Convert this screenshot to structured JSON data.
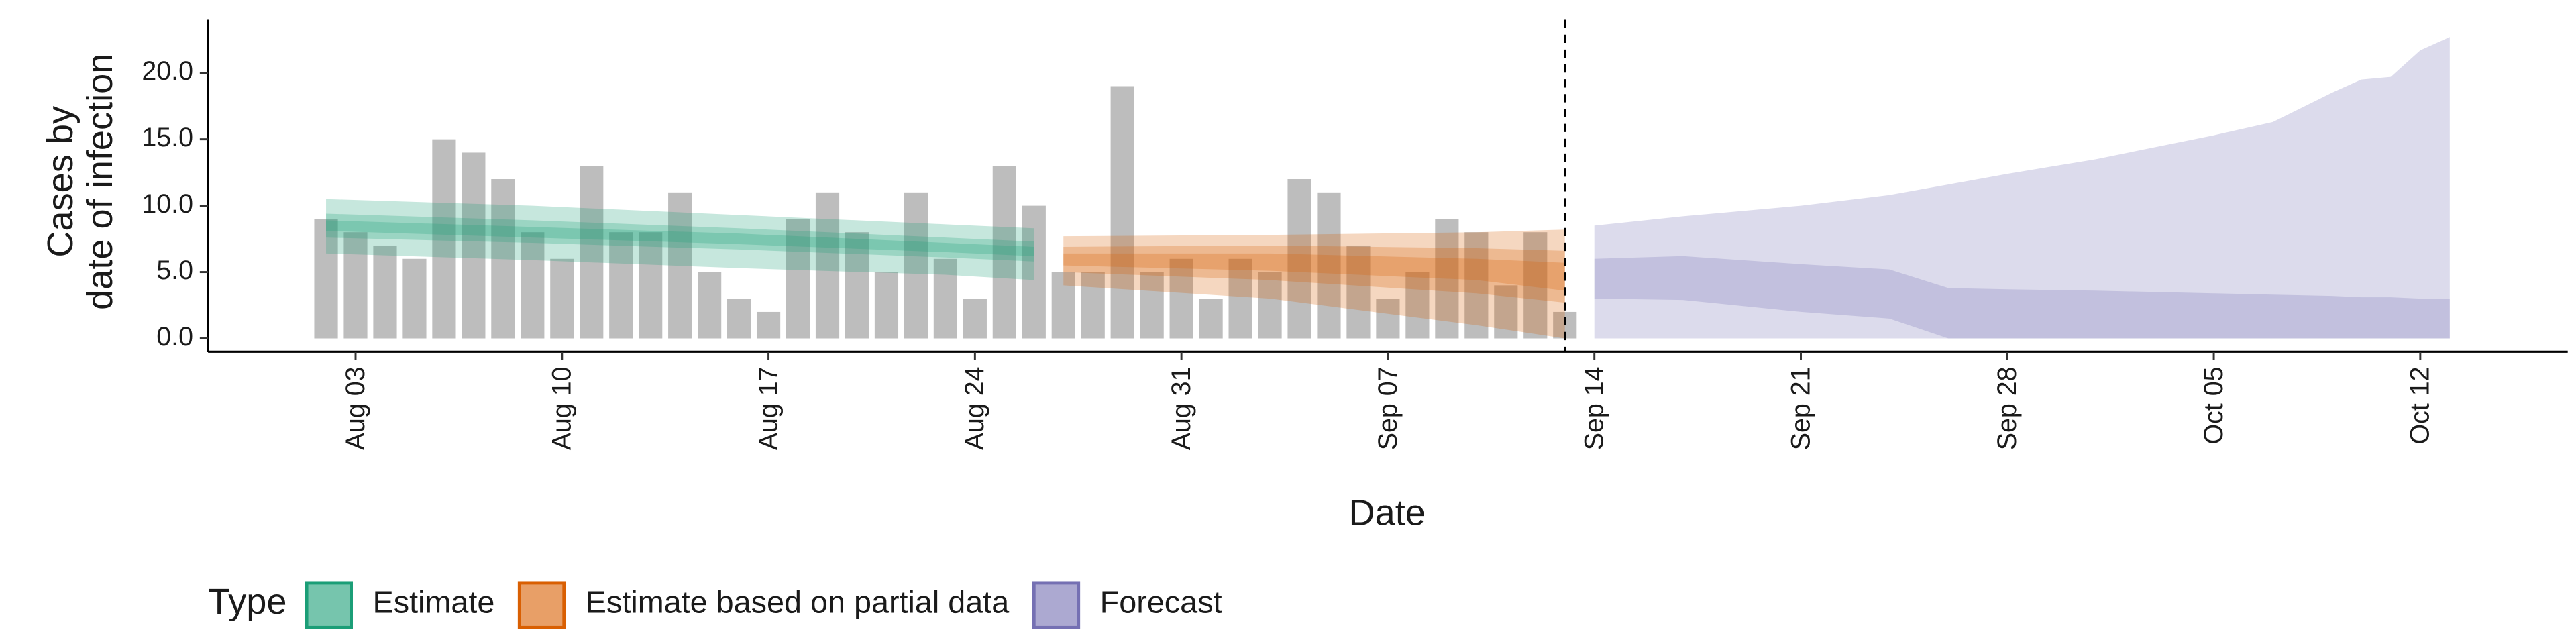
{
  "chart_data": {
    "type": "area",
    "xlabel": "Date",
    "ylabel": [
      "Cases by",
      "date of infection"
    ],
    "legend_title": "Type",
    "legend": "bottom-left",
    "grid": false,
    "xlim": [
      "Jul 29",
      "Oct 17"
    ],
    "xticks": [
      "Aug 03",
      "Aug 10",
      "Aug 17",
      "Aug 24",
      "Aug 31",
      "Sep 07",
      "Sep 14",
      "Sep 21",
      "Sep 28",
      "Oct 05",
      "Oct 12"
    ],
    "ylim": [
      -1,
      24
    ],
    "yticks": [
      {
        "value": 0,
        "label": "0.0"
      },
      {
        "value": 5,
        "label": "5.0"
      },
      {
        "value": 10,
        "label": "10.0"
      },
      {
        "value": 15,
        "label": "15.0"
      },
      {
        "value": 20,
        "label": "20.0"
      }
    ],
    "vline": "Sep 13",
    "series": [
      {
        "type": "bar",
        "color": "#bdbdbd",
        "x": [
          "Aug 02",
          "Aug 03",
          "Aug 04",
          "Aug 05",
          "Aug 06",
          "Aug 07",
          "Aug 08",
          "Aug 09",
          "Aug 10",
          "Aug 11",
          "Aug 12",
          "Aug 13",
          "Aug 14",
          "Aug 15",
          "Aug 16",
          "Aug 17",
          "Aug 18",
          "Aug 19",
          "Aug 20",
          "Aug 21",
          "Aug 22",
          "Aug 23",
          "Aug 24",
          "Aug 25",
          "Aug 26",
          "Aug 27",
          "Aug 28",
          "Aug 29",
          "Aug 30",
          "Aug 31",
          "Sep 01",
          "Sep 02",
          "Sep 03",
          "Sep 04",
          "Sep 05",
          "Sep 06",
          "Sep 07",
          "Sep 08",
          "Sep 09",
          "Sep 10",
          "Sep 11",
          "Sep 12",
          "Sep 13"
        ],
        "values": [
          9,
          8,
          7,
          6,
          15,
          14,
          12,
          8,
          6,
          13,
          8,
          8,
          11,
          5,
          3,
          2,
          9,
          11,
          8,
          5,
          11,
          6,
          3,
          13,
          10,
          5,
          5,
          19,
          5,
          6,
          3,
          6,
          5,
          12,
          11,
          7,
          3,
          5,
          9,
          8,
          4,
          8,
          2
        ]
      },
      {
        "type": "ribbon",
        "name": "Estimate",
        "color": "#1b9e77",
        "bands": [
          {
            "x": [
              "Aug 02",
              "Aug 09",
              "Aug 16",
              "Aug 23",
              "Aug 26"
            ],
            "lower": [
              6.4,
              5.9,
              5.3,
              4.8,
              4.4
            ],
            "upper": [
              10.5,
              10.0,
              9.3,
              8.6,
              8.3
            ]
          },
          {
            "x": [
              "Aug 02",
              "Aug 09",
              "Aug 16",
              "Aug 23",
              "Aug 26"
            ],
            "lower": [
              7.6,
              7.2,
              6.7,
              6.1,
              5.8
            ],
            "upper": [
              9.4,
              8.9,
              8.3,
              7.6,
              7.3
            ]
          },
          {
            "x": [
              "Aug 02",
              "Aug 09",
              "Aug 16",
              "Aug 23",
              "Aug 26"
            ],
            "lower": [
              8.1,
              7.6,
              7.1,
              6.5,
              6.2
            ],
            "upper": [
              8.9,
              8.4,
              7.9,
              7.2,
              6.9
            ]
          }
        ]
      },
      {
        "type": "ribbon",
        "name": "Estimate based on partial data",
        "color": "#d95f02",
        "bands": [
          {
            "x": [
              "Aug 27",
              "Sep 03",
              "Sep 10",
              "Sep 13"
            ],
            "lower": [
              4.0,
              3.0,
              1.0,
              0.0
            ],
            "upper": [
              7.7,
              7.8,
              8.0,
              8.2
            ]
          },
          {
            "x": [
              "Aug 27",
              "Sep 03",
              "Sep 10",
              "Sep 13"
            ],
            "lower": [
              5.0,
              4.4,
              3.4,
              2.7
            ],
            "upper": [
              6.9,
              7.0,
              6.8,
              6.6
            ]
          },
          {
            "x": [
              "Aug 27",
              "Sep 03",
              "Sep 10",
              "Sep 13"
            ],
            "lower": [
              5.5,
              5.1,
              4.4,
              3.6
            ],
            "upper": [
              6.4,
              6.4,
              6.0,
              5.7
            ]
          }
        ]
      },
      {
        "type": "ribbon",
        "name": "Forecast",
        "color": "#7570b3",
        "bands": [
          {
            "x": [
              "Sep 14",
              "Sep 17",
              "Sep 21",
              "Sep 24",
              "Sep 26",
              "Sep 28",
              "Oct 01",
              "Oct 05",
              "Oct 07",
              "Oct 09",
              "Oct 10",
              "Oct 11",
              "Oct 12",
              "Oct 13"
            ],
            "lower": [
              0,
              0,
              0,
              0,
              0,
              0,
              0,
              0,
              0,
              0,
              0,
              0,
              0,
              0
            ],
            "upper": [
              8.5,
              9.2,
              10.0,
              10.8,
              11.6,
              12.4,
              13.5,
              15.3,
              16.3,
              18.5,
              19.5,
              19.7,
              21.7,
              22.7
            ]
          },
          {
            "x": [
              "Sep 14",
              "Sep 17",
              "Sep 21",
              "Sep 24",
              "Sep 26",
              "Sep 28",
              "Oct 01",
              "Oct 05",
              "Oct 07",
              "Oct 09",
              "Oct 10",
              "Oct 11",
              "Oct 12",
              "Oct 13"
            ],
            "lower": [
              3.0,
              2.9,
              2.0,
              1.5,
              0,
              0,
              0,
              0,
              0,
              0,
              0,
              0,
              0,
              0
            ],
            "upper": [
              6.0,
              6.2,
              5.6,
              5.2,
              3.8,
              3.7,
              3.6,
              3.4,
              3.3,
              3.2,
              3.1,
              3.1,
              3.0,
              3.0
            ]
          }
        ]
      }
    ]
  }
}
